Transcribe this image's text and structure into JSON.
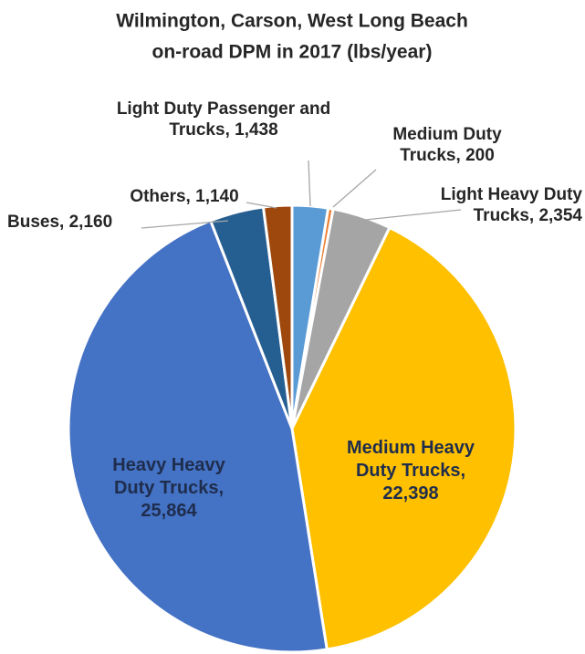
{
  "chart_data": {
    "type": "pie",
    "title": [
      "Wilmington, Carson, West Long Beach",
      "on-road DPM in 2017 (lbs/year)"
    ],
    "categories": [
      "Light Duty Passenger and Trucks,",
      "Medium Duty Trucks,",
      "Light Heavy Duty Trucks,",
      "Medium Heavy Duty Trucks,",
      "Heavy Heavy Duty Trucks,",
      "Buses,",
      "Others,"
    ],
    "values": [
      1438,
      200,
      2354,
      22398,
      25864,
      2160,
      1140
    ],
    "value_labels": [
      "1,438",
      "200",
      "2,354",
      "22,398",
      "25,864",
      "2,160",
      "1,140"
    ],
    "colors": [
      "#5b9bd5",
      "#ed7d31",
      "#a5a5a5",
      "#ffc000",
      "#4472c4",
      "#255e91",
      "#9e480e"
    ]
  }
}
